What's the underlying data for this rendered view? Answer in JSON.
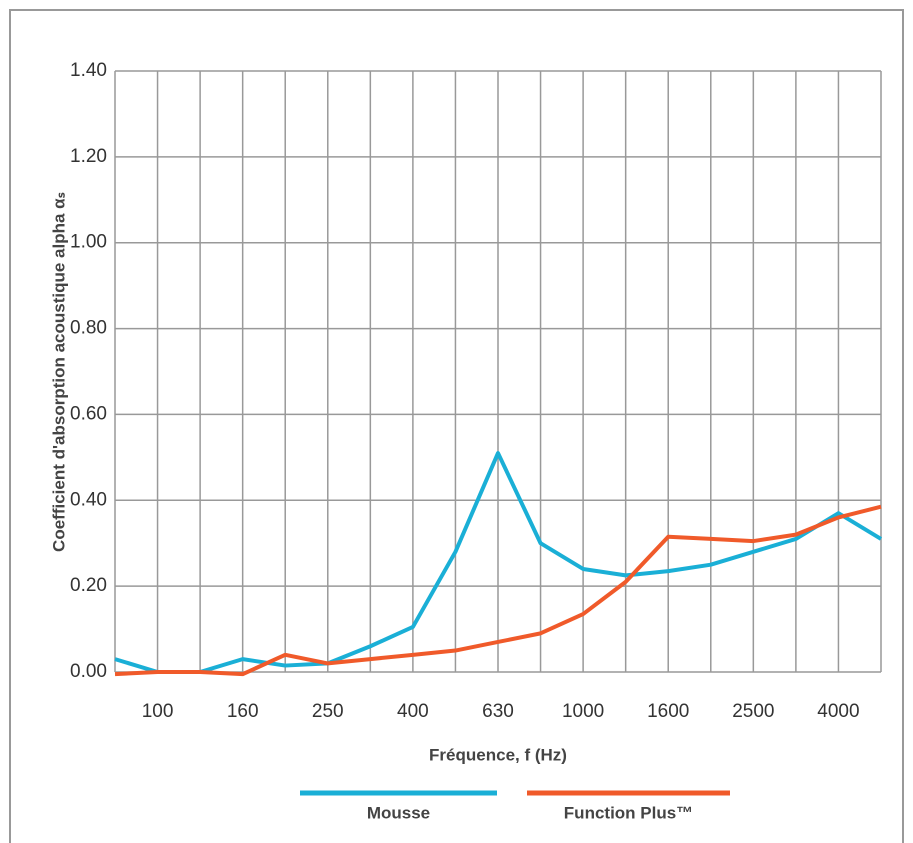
{
  "chart_data": {
    "type": "line",
    "ylabel": "Coefficient d'absorption acoustique alpha αₛ",
    "xlabel": "Fréquence, f (Hz)",
    "categories": [
      null,
      100,
      null,
      160,
      null,
      250,
      null,
      400,
      null,
      630,
      null,
      1000,
      null,
      1600,
      null,
      2500,
      null,
      4000,
      null
    ],
    "series": [
      {
        "name": "Mousse",
        "color": "#1aafd6",
        "values": [
          0.03,
          0.0,
          0.0,
          0.03,
          0.015,
          0.02,
          0.06,
          0.105,
          0.28,
          0.51,
          0.3,
          0.24,
          0.225,
          0.235,
          0.25,
          0.28,
          0.31,
          0.37,
          0.31
        ]
      },
      {
        "name": "Function Plus™",
        "color": "#f05a2a",
        "values": [
          -0.005,
          0.0,
          0.0,
          -0.005,
          0.04,
          0.02,
          0.03,
          0.04,
          0.05,
          0.07,
          0.09,
          0.135,
          0.21,
          0.315,
          0.31,
          0.305,
          0.32,
          0.36,
          0.385
        ]
      }
    ],
    "ylim": [
      0,
      1.4
    ],
    "yticks": [
      {
        "value": 0,
        "label": "0.00"
      },
      {
        "value": 0.2,
        "label": "0.20"
      },
      {
        "value": 0.4,
        "label": "0.40"
      },
      {
        "value": 0.6,
        "label": "0.60"
      },
      {
        "value": 0.8,
        "label": "0.80"
      },
      {
        "value": 1.0,
        "label": "1.00"
      },
      {
        "value": 1.2,
        "label": "1.20"
      },
      {
        "value": 1.4,
        "label": "1.40"
      }
    ],
    "grid": true
  }
}
